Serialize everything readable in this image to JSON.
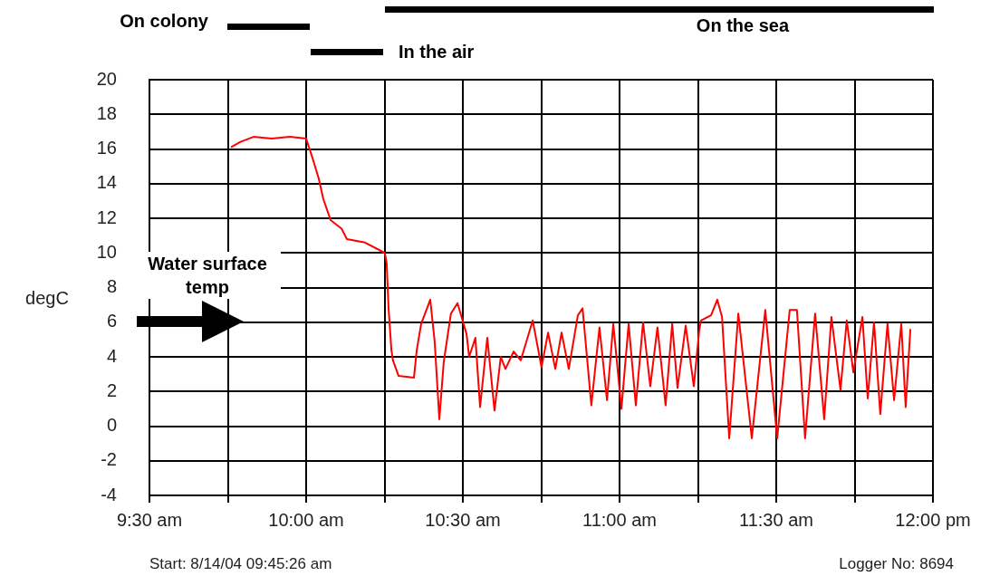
{
  "chart_data": {
    "type": "line",
    "ylabel": "degC",
    "color": "#ff0000",
    "grid": true,
    "x": [
      9.76,
      9.789,
      9.832,
      9.89,
      9.948,
      10.0,
      10.02,
      10.04,
      10.055,
      10.078,
      10.113,
      10.13,
      10.188,
      10.251,
      10.257,
      10.263,
      10.272,
      10.277,
      10.295,
      10.344,
      10.353,
      10.367,
      10.396,
      10.41,
      10.425,
      10.439,
      10.462,
      10.483,
      10.512,
      10.52,
      10.54,
      10.555,
      10.578,
      10.601,
      10.621,
      10.636,
      10.662,
      10.685,
      10.723,
      10.751,
      10.772,
      10.795,
      10.815,
      10.838,
      10.867,
      10.882,
      10.91,
      10.936,
      10.96,
      10.98,
      11.006,
      11.029,
      11.052,
      11.075,
      11.098,
      11.121,
      11.147,
      11.168,
      11.185,
      11.211,
      11.237,
      11.254,
      11.26,
      11.292,
      11.312,
      11.327,
      11.35,
      11.379,
      11.422,
      11.465,
      11.503,
      11.543,
      11.566,
      11.592,
      11.624,
      11.653,
      11.676,
      11.705,
      11.725,
      11.746,
      11.775,
      11.792,
      11.812,
      11.832,
      11.855,
      11.876,
      11.899,
      11.913,
      11.928
    ],
    "values": [
      16.1,
      16.4,
      16.7,
      16.6,
      16.7,
      16.6,
      15.5,
      14.3,
      13.1,
      11.9,
      11.4,
      10.8,
      10.6,
      10.0,
      9.4,
      6.8,
      4.4,
      3.8,
      2.9,
      2.8,
      4.4,
      5.9,
      7.3,
      4.9,
      0.4,
      3.7,
      6.5,
      7.1,
      5.3,
      4.0,
      5.1,
      1.1,
      5.1,
      0.9,
      4.0,
      3.3,
      4.3,
      3.8,
      6.1,
      3.4,
      5.4,
      3.3,
      5.4,
      3.3,
      6.4,
      6.8,
      1.2,
      5.7,
      1.5,
      5.9,
      1.0,
      5.9,
      1.2,
      6.0,
      2.3,
      5.7,
      1.2,
      5.9,
      2.2,
      5.8,
      2.3,
      5.5,
      6.1,
      6.4,
      7.3,
      6.3,
      -0.7,
      6.5,
      -0.7,
      6.7,
      -0.7,
      6.7,
      6.7,
      -0.7,
      6.5,
      0.4,
      6.3,
      2.1,
      6.1,
      3.1,
      6.3,
      1.6,
      6.0,
      0.7,
      5.9,
      1.5,
      5.9,
      1.1,
      5.6
    ],
    "xlim": [
      9.5,
      12
    ],
    "xticks": [
      {
        "value": 9.5,
        "label": "9:30 am"
      },
      {
        "value": 9.75,
        "label": null
      },
      {
        "value": 10,
        "label": "10:00 am"
      },
      {
        "value": 10.25,
        "label": null
      },
      {
        "value": 10.5,
        "label": "10:30 am"
      },
      {
        "value": 10.75,
        "label": null
      },
      {
        "value": 11,
        "label": "11:00 am"
      },
      {
        "value": 11.25,
        "label": null
      },
      {
        "value": 11.5,
        "label": "11:30 am"
      },
      {
        "value": 11.75,
        "label": null
      },
      {
        "value": 12,
        "label": "12:00 pm"
      }
    ],
    "ylim": [
      -4,
      20
    ],
    "yticks": [
      -4,
      -2,
      0,
      2,
      4,
      6,
      8,
      10,
      12,
      14,
      16,
      18,
      20
    ],
    "annotations": [
      "On colony",
      "In the air",
      "On the sea",
      "Water surface temp",
      "Start: 8/14/04 09:45:26 am",
      "Logger No: 8694"
    ]
  }
}
